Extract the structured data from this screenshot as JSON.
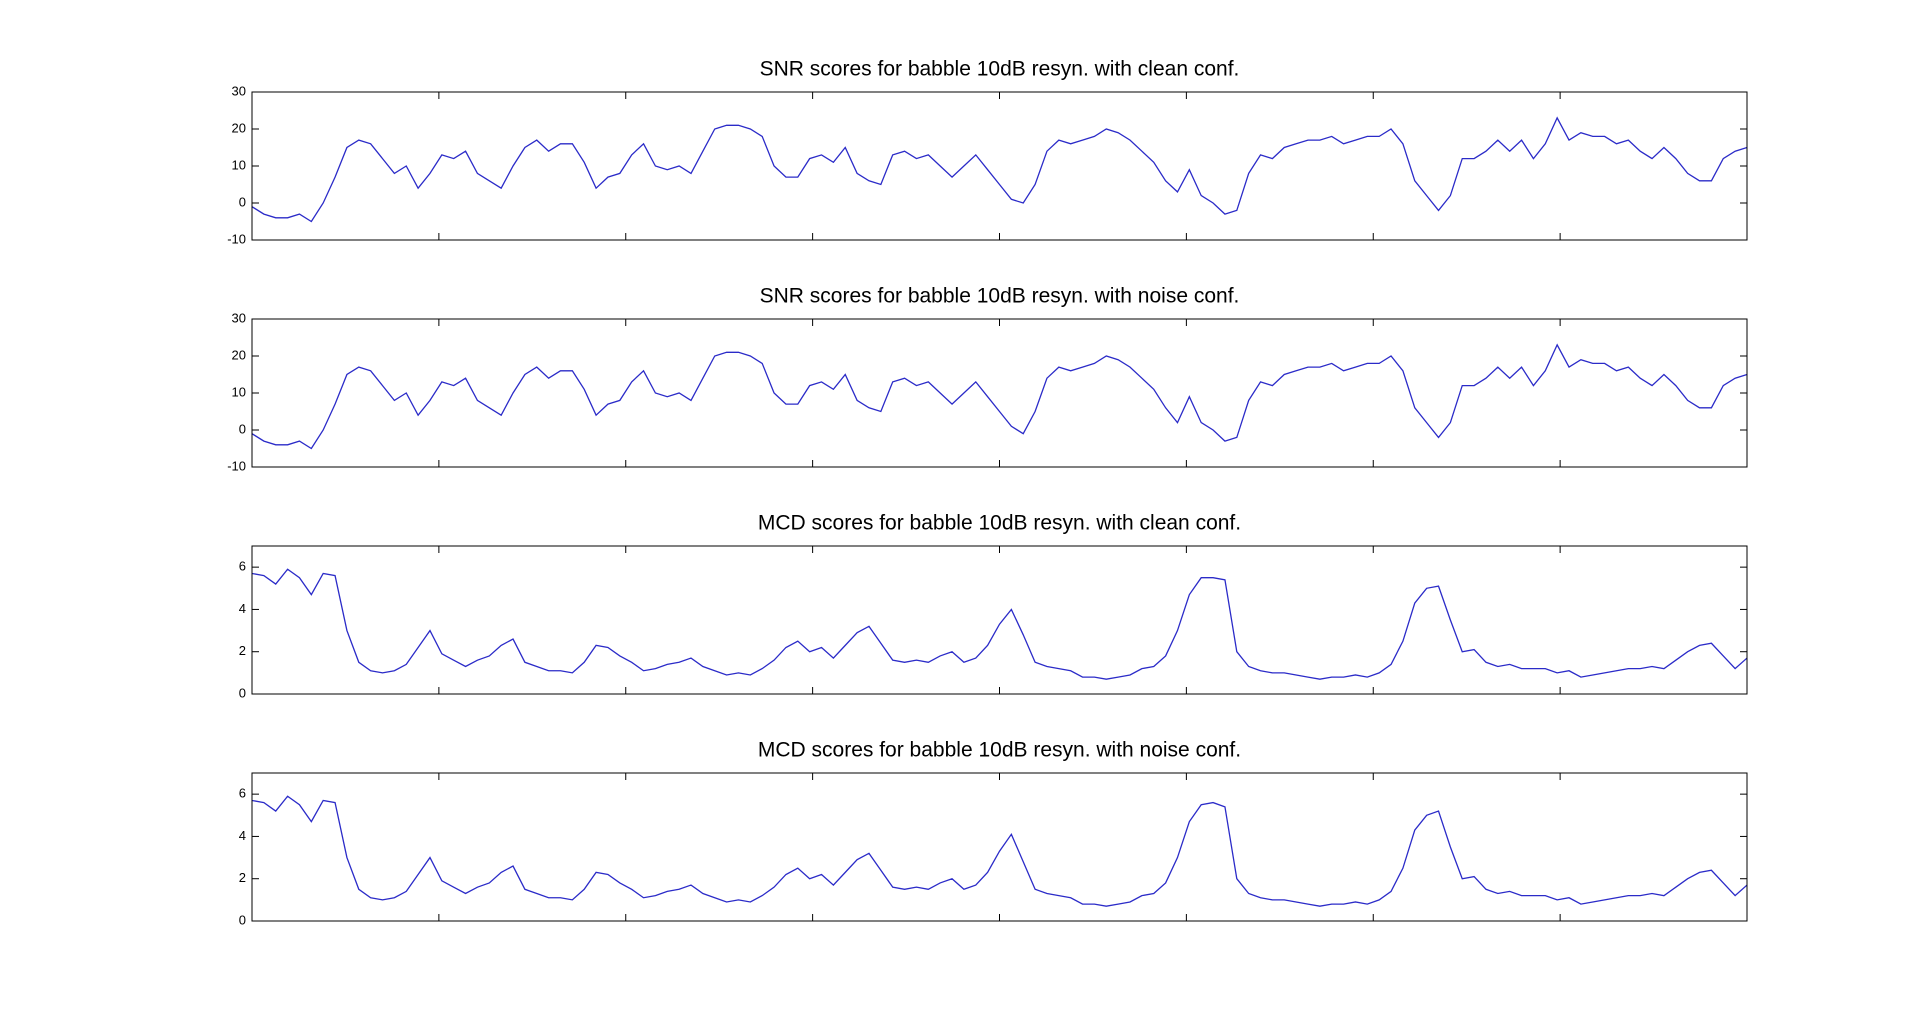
{
  "chart_data": [
    {
      "type": "line",
      "title": "SNR scores for babble 10dB resyn. with clean conf.",
      "color": "#2b2bc8",
      "grid": false,
      "ylim": [
        -10,
        30
      ],
      "yticks": [
        -10,
        0,
        10,
        20,
        30
      ],
      "values": [
        -1,
        -3,
        -4,
        -4,
        -3,
        -5,
        0,
        7,
        15,
        17,
        16,
        12,
        8,
        10,
        4,
        8,
        13,
        12,
        14,
        8,
        6,
        4,
        10,
        15,
        17,
        14,
        16,
        16,
        11,
        4,
        7,
        8,
        13,
        16,
        10,
        9,
        10,
        8,
        14,
        20,
        21,
        21,
        20,
        18,
        10,
        7,
        7,
        12,
        13,
        11,
        15,
        8,
        6,
        5,
        13,
        14,
        12,
        13,
        10,
        7,
        10,
        13,
        9,
        5,
        1,
        0,
        5,
        14,
        17,
        16,
        17,
        18,
        20,
        19,
        17,
        14,
        11,
        6,
        3,
        9,
        2,
        0,
        -3,
        -2,
        8,
        13,
        12,
        15,
        16,
        17,
        17,
        18,
        16,
        17,
        18,
        18,
        20,
        16,
        6,
        2,
        -2,
        2,
        12,
        12,
        14,
        17,
        14,
        17,
        12,
        16,
        23,
        17,
        19,
        18,
        18,
        16,
        17,
        14,
        12,
        15,
        12,
        8,
        6,
        6,
        12,
        14,
        15
      ]
    },
    {
      "type": "line",
      "title": "SNR scores for babble 10dB resyn. with noise conf.",
      "color": "#2b2bc8",
      "grid": false,
      "ylim": [
        -10,
        30
      ],
      "yticks": [
        -10,
        0,
        10,
        20,
        30
      ],
      "values": [
        -1,
        -3,
        -4,
        -4,
        -3,
        -5,
        0,
        7,
        15,
        17,
        16,
        12,
        8,
        10,
        4,
        8,
        13,
        12,
        14,
        8,
        6,
        4,
        10,
        15,
        17,
        14,
        16,
        16,
        11,
        4,
        7,
        8,
        13,
        16,
        10,
        9,
        10,
        8,
        14,
        20,
        21,
        21,
        20,
        18,
        10,
        7,
        7,
        12,
        13,
        11,
        15,
        8,
        6,
        5,
        13,
        14,
        12,
        13,
        10,
        7,
        10,
        13,
        9,
        5,
        1,
        -1,
        5,
        14,
        17,
        16,
        17,
        18,
        20,
        19,
        17,
        14,
        11,
        6,
        2,
        9,
        2,
        0,
        -3,
        -2,
        8,
        13,
        12,
        15,
        16,
        17,
        17,
        18,
        16,
        17,
        18,
        18,
        20,
        16,
        6,
        2,
        -2,
        2,
        12,
        12,
        14,
        17,
        14,
        17,
        12,
        16,
        23,
        17,
        19,
        18,
        18,
        16,
        17,
        14,
        12,
        15,
        12,
        8,
        6,
        6,
        12,
        14,
        15
      ]
    },
    {
      "type": "line",
      "title": "MCD scores for babble 10dB resyn. with clean conf.",
      "color": "#2b2bc8",
      "grid": false,
      "ylim": [
        0,
        7
      ],
      "yticks": [
        0,
        2,
        4,
        6
      ],
      "values": [
        5.7,
        5.6,
        5.2,
        5.9,
        5.5,
        4.7,
        5.7,
        5.6,
        3,
        1.5,
        1.1,
        1,
        1.1,
        1.4,
        2.2,
        3,
        1.9,
        1.6,
        1.3,
        1.6,
        1.8,
        2.3,
        2.6,
        1.5,
        1.3,
        1.1,
        1.1,
        1,
        1.5,
        2.3,
        2.2,
        1.8,
        1.5,
        1.1,
        1.2,
        1.4,
        1.5,
        1.7,
        1.3,
        1.1,
        0.9,
        1,
        0.9,
        1.2,
        1.6,
        2.2,
        2.5,
        2,
        2.2,
        1.7,
        2.3,
        2.9,
        3.2,
        2.4,
        1.6,
        1.5,
        1.6,
        1.5,
        1.8,
        2,
        1.5,
        1.7,
        2.3,
        3.3,
        4,
        2.8,
        1.5,
        1.3,
        1.2,
        1.1,
        0.8,
        0.8,
        0.7,
        0.8,
        0.9,
        1.2,
        1.3,
        1.8,
        3,
        4.7,
        5.5,
        5.5,
        5.4,
        2,
        1.3,
        1.1,
        1,
        1,
        0.9,
        0.8,
        0.7,
        0.8,
        0.8,
        0.9,
        0.8,
        1,
        1.4,
        2.5,
        4.3,
        5,
        5.1,
        3.5,
        2,
        2.1,
        1.5,
        1.3,
        1.4,
        1.2,
        1.2,
        1.2,
        1,
        1.1,
        0.8,
        0.9,
        1,
        1.1,
        1.2,
        1.2,
        1.3,
        1.2,
        1.6,
        2,
        2.3,
        2.4,
        1.8,
        1.2,
        1.7
      ]
    },
    {
      "type": "line",
      "title": "MCD scores for babble 10dB resyn. with noise conf.",
      "color": "#2b2bc8",
      "grid": false,
      "ylim": [
        0,
        7
      ],
      "yticks": [
        0,
        2,
        4,
        6
      ],
      "values": [
        5.7,
        5.6,
        5.2,
        5.9,
        5.5,
        4.7,
        5.7,
        5.6,
        3,
        1.5,
        1.1,
        1,
        1.1,
        1.4,
        2.2,
        3,
        1.9,
        1.6,
        1.3,
        1.6,
        1.8,
        2.3,
        2.6,
        1.5,
        1.3,
        1.1,
        1.1,
        1,
        1.5,
        2.3,
        2.2,
        1.8,
        1.5,
        1.1,
        1.2,
        1.4,
        1.5,
        1.7,
        1.3,
        1.1,
        0.9,
        1,
        0.9,
        1.2,
        1.6,
        2.2,
        2.5,
        2,
        2.2,
        1.7,
        2.3,
        2.9,
        3.2,
        2.4,
        1.6,
        1.5,
        1.6,
        1.5,
        1.8,
        2,
        1.5,
        1.7,
        2.3,
        3.3,
        4.1,
        2.8,
        1.5,
        1.3,
        1.2,
        1.1,
        0.8,
        0.8,
        0.7,
        0.8,
        0.9,
        1.2,
        1.3,
        1.8,
        3,
        4.7,
        5.5,
        5.6,
        5.4,
        2,
        1.3,
        1.1,
        1,
        1,
        0.9,
        0.8,
        0.7,
        0.8,
        0.8,
        0.9,
        0.8,
        1,
        1.4,
        2.5,
        4.3,
        5,
        5.2,
        3.5,
        2,
        2.1,
        1.5,
        1.3,
        1.4,
        1.2,
        1.2,
        1.2,
        1,
        1.1,
        0.8,
        0.9,
        1,
        1.1,
        1.2,
        1.2,
        1.3,
        1.2,
        1.6,
        2,
        2.3,
        2.4,
        1.8,
        1.2,
        1.7
      ]
    }
  ]
}
